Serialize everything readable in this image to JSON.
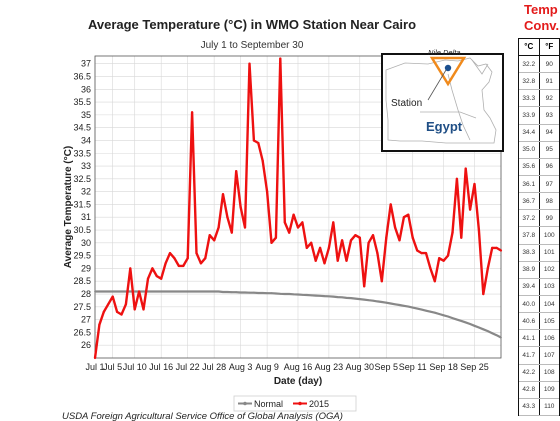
{
  "chart_data": {
    "type": "line",
    "title": "Average Temperature (°C) in WMO Station Near Cairo",
    "subtitle": "July 1 to September 30",
    "xlabel": "Date (day)",
    "ylabel": "Average Temperature (°C)",
    "ylim": [
      25.5,
      37.3
    ],
    "yticks": [
      "26",
      "26.5",
      "27",
      "27.5",
      "28",
      "28.5",
      "29",
      "29.5",
      "30",
      "30.5",
      "31",
      "31.5",
      "32",
      "32.5",
      "33",
      "33.5",
      "34",
      "34.5",
      "35",
      "35.5",
      "36",
      "36.5",
      "37"
    ],
    "xticks": [
      "Jul 1",
      "Jul 5",
      "Jul 10",
      "Jul 16",
      "Jul 22",
      "Jul 28",
      "Aug 3",
      "Aug 9",
      "Aug 16",
      "Aug 23",
      "Aug 30",
      "Sep 5",
      "Sep 11",
      "Sep 18",
      "Sep 25"
    ],
    "grid": true,
    "legend_position": "bottom",
    "series": [
      {
        "name": "Normal",
        "color": "#888888",
        "values": [
          28.1,
          28.1,
          28.1,
          28.1,
          28.1,
          28.1,
          28.1,
          28.1,
          28.1,
          28.1,
          28.1,
          28.1,
          28.1,
          28.1,
          28.1,
          28.1,
          28.1,
          28.1,
          28.1,
          28.1,
          28.1,
          28.1,
          28.1,
          28.1,
          28.1,
          28.1,
          28.1,
          28.1,
          28.1,
          28.08,
          28.08,
          28.07,
          28.07,
          28.06,
          28.06,
          28.05,
          28.05,
          28.04,
          28.04,
          28.03,
          28.03,
          28.02,
          28.01,
          28.0,
          28.0,
          27.99,
          27.98,
          27.97,
          27.96,
          27.95,
          27.94,
          27.93,
          27.92,
          27.91,
          27.9,
          27.88,
          27.87,
          27.85,
          27.84,
          27.82,
          27.8,
          27.78,
          27.76,
          27.74,
          27.71,
          27.69,
          27.66,
          27.63,
          27.6,
          27.57,
          27.54,
          27.51,
          27.47,
          27.43,
          27.39,
          27.35,
          27.31,
          27.27,
          27.22,
          27.17,
          27.12,
          27.06,
          27.0,
          26.95,
          26.89,
          26.83,
          26.76,
          26.69,
          26.62,
          26.55,
          26.47,
          26.39,
          26.3
        ]
      },
      {
        "name": "2015",
        "color": "#ee1111",
        "values": [
          25.5,
          26.8,
          27.3,
          27.6,
          27.9,
          27.3,
          27.2,
          27.6,
          29.0,
          27.4,
          28.1,
          27.4,
          28.6,
          29.0,
          28.7,
          28.6,
          29.2,
          29.6,
          29.4,
          29.1,
          29.1,
          29.4,
          35.1,
          29.6,
          29.2,
          29.4,
          30.3,
          30.1,
          30.6,
          31.9,
          31.0,
          30.4,
          32.8,
          31.4,
          30.6,
          37.0,
          34.0,
          33.9,
          33.2,
          32.0,
          30.0,
          30.2,
          37.2,
          30.8,
          30.4,
          31.1,
          30.6,
          30.8,
          29.8,
          30.0,
          29.3,
          29.8,
          29.2,
          29.8,
          30.8,
          29.3,
          30.1,
          29.3,
          30.1,
          30.3,
          30.2,
          28.3,
          30.0,
          30.3,
          29.6,
          28.5,
          30.2,
          31.5,
          30.6,
          30.1,
          31.0,
          31.1,
          30.2,
          29.7,
          29.6,
          29.6,
          29.0,
          28.5,
          29.4,
          29.3,
          29.5,
          30.4,
          32.5,
          30.2,
          32.9,
          31.3,
          32.3,
          30.5,
          28.0,
          29.0,
          29.8,
          29.8,
          29.7
        ]
      }
    ]
  },
  "inset_map": {
    "nile_delta_label": "Nile Delta",
    "station_label": "Station",
    "country_label": "Egypt"
  },
  "source_note": "USDA Foreign Agricultural Service Office of Global Analysis (OGA)",
  "conversion": {
    "title_line1": "Temp",
    "title_line2": "Conv.",
    "col_c": "°C",
    "col_f": "°F",
    "rows": [
      [
        "32.2",
        "90"
      ],
      [
        "32.8",
        "91"
      ],
      [
        "33.3",
        "92"
      ],
      [
        "33.9",
        "93"
      ],
      [
        "34.4",
        "94"
      ],
      [
        "35.0",
        "95"
      ],
      [
        "35.6",
        "96"
      ],
      [
        "36.1",
        "97"
      ],
      [
        "36.7",
        "98"
      ],
      [
        "37.2",
        "99"
      ],
      [
        "37.8",
        "100"
      ],
      [
        "38.3",
        "101"
      ],
      [
        "38.9",
        "102"
      ],
      [
        "39.4",
        "103"
      ],
      [
        "40.0",
        "104"
      ],
      [
        "40.6",
        "105"
      ],
      [
        "41.1",
        "106"
      ],
      [
        "41.7",
        "107"
      ],
      [
        "42.2",
        "108"
      ],
      [
        "42.8",
        "109"
      ],
      [
        "43.3",
        "110"
      ]
    ]
  }
}
